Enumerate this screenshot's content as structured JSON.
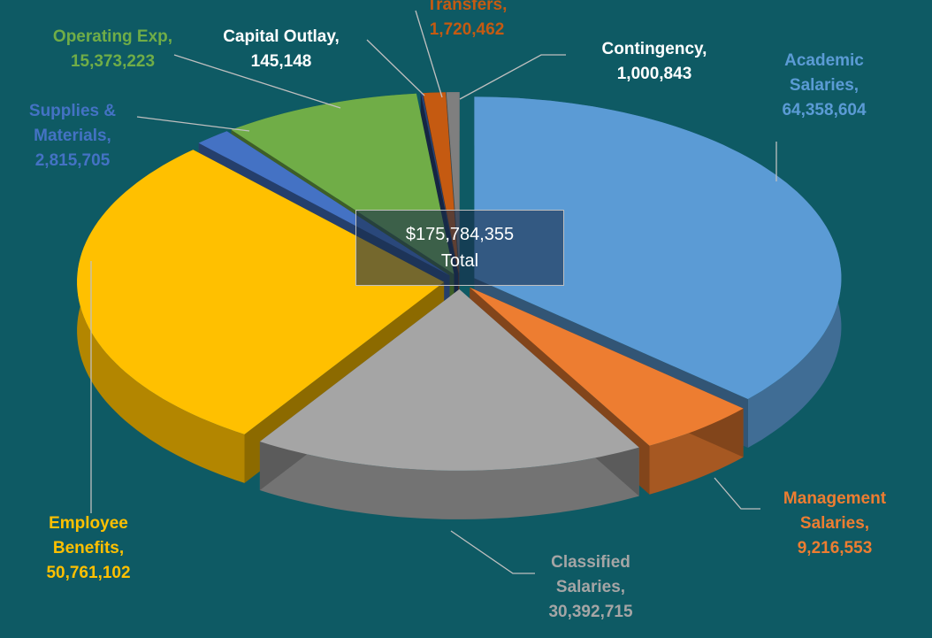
{
  "chart_data": {
    "type": "pie3d",
    "categories": [
      "Academic Salaries,",
      "Management Salaries,",
      "Classified Salaries,",
      "Employee Benefits,",
      "Supplies & Materials,",
      "Operating Exp,",
      "Capital Outlay,",
      "Transfers,",
      "Contingency,"
    ],
    "values": [
      64358604,
      9216553,
      30392715,
      50761102,
      2815705,
      15373223,
      145148,
      1720462,
      1000843
    ],
    "value_labels": [
      "64,358,604",
      "9,216,553",
      "30,392,715",
      "50,761,102",
      "2,815,705",
      "15,373,223",
      "145,148",
      "1,720,462",
      "1,000,843"
    ],
    "colors": [
      "#5b9bd5",
      "#ed7d31",
      "#a5a5a5",
      "#ffc000",
      "#4472c4",
      "#70ad47",
      "#264478",
      "#c55a11",
      "#7f7f7f"
    ],
    "label_colors": [
      "#5b9bd5",
      "#ed7d31",
      "#a5a5a5",
      "#ffc000",
      "#4472c4",
      "#70ad47",
      "#ffffff",
      "#c55a11",
      "#ffffff"
    ],
    "total": {
      "value_label": "$175,784,355",
      "label": "Total"
    }
  }
}
